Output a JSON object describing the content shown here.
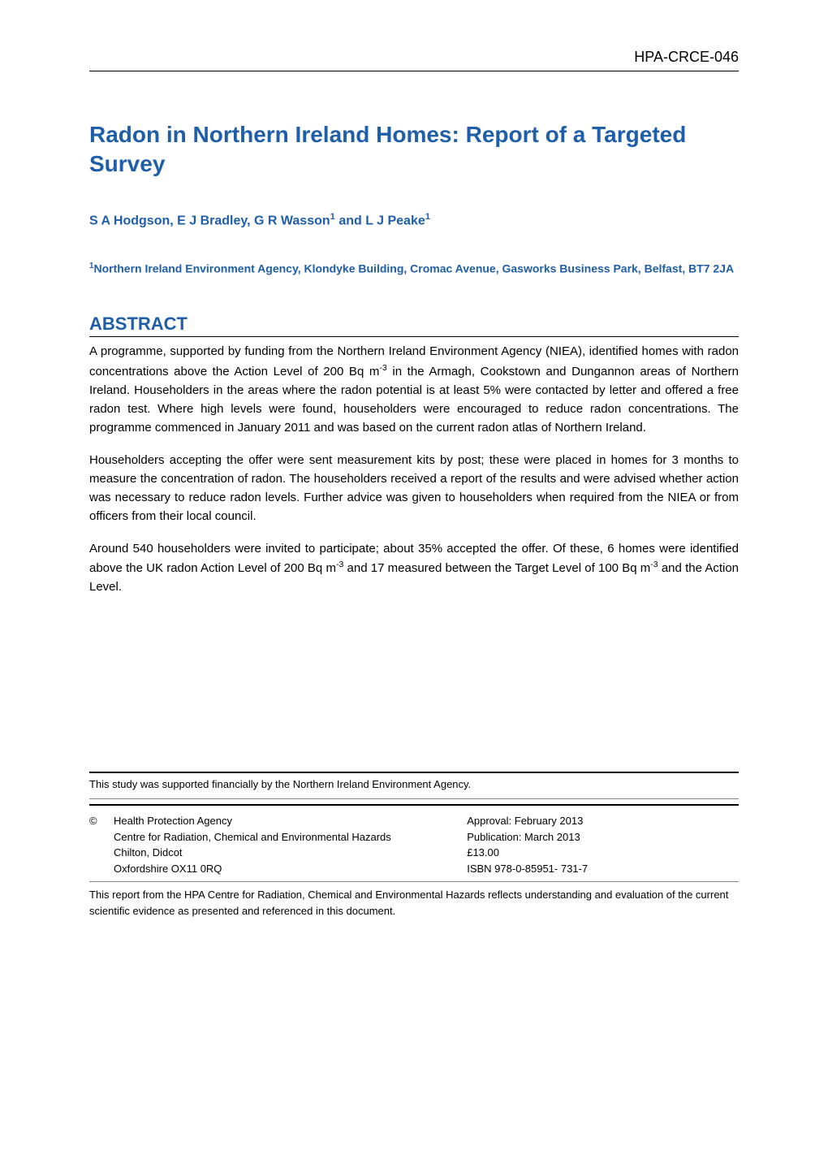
{
  "header": {
    "report_id": "HPA-CRCE-046"
  },
  "title": "Radon in Northern Ireland Homes: Report of a Targeted Survey",
  "authors_html": "S A Hodgson, E J Bradley, G R Wasson<sup>1</sup> and L J Peake<sup>1</sup>",
  "affiliation_html": "<sup>1</sup>Northern Ireland Environment Agency, Klondyke Building, Cromac Avenue, Gasworks Business Park, Belfast, BT7 2JA",
  "abstract": {
    "heading": "ABSTRACT",
    "para1_html": "A programme, supported by funding from the Northern Ireland Environment Agency (NIEA), identified homes with radon concentrations above the Action Level of 200 Bq m<sup>-3</sup> in the Armagh, Cookstown and Dungannon areas of Northern Ireland. Householders in the areas where the radon potential is at least 5% were contacted by letter and offered a free radon test. Where high levels were found, householders were encouraged to reduce radon concentrations. The programme commenced in January 2011 and was based on the current radon atlas of Northern Ireland.",
    "para2": "Householders accepting the offer were sent measurement kits by post; these were placed in homes for 3 months to measure the concentration of radon. The householders received a report of the results and were advised whether action was necessary to reduce radon levels. Further advice was given to householders when required from the NIEA or from officers from their local council.",
    "para3_html": "Around 540 householders were invited to participate; about 35% accepted the offer. Of these, 6 homes were identified above the UK radon Action Level of 200 Bq m<sup>-3</sup> and 17 measured between the Target Level of 100 Bq m<sup>-3</sup> and the Action Level."
  },
  "funding": "This study was supported financially by the Northern Ireland Environment Agency.",
  "copyright": {
    "symbol": "©",
    "org": "Health Protection Agency",
    "centre": "Centre for Radiation, Chemical and Environmental Hazards",
    "addr1": "Chilton, Didcot",
    "addr2": "Oxfordshire OX11 0RQ",
    "approval": "Approval: February 2013",
    "publication": "Publication: March 2013",
    "price": "£13.00",
    "isbn": "ISBN 978-0-85951- 731-7"
  },
  "disclaimer": "This report from the HPA Centre for Radiation, Chemical and Environmental Hazards reflects understanding and evaluation of the current scientific evidence as presented and referenced in this document.",
  "colors": {
    "heading_blue": "#1f5ea8",
    "text_black": "#000000",
    "rule_grey": "#888888",
    "background": "#ffffff"
  },
  "typography": {
    "body_font": "Arial",
    "title_size_pt": 21,
    "heading_size_pt": 17,
    "body_size_pt": 11,
    "footer_size_pt": 10
  }
}
